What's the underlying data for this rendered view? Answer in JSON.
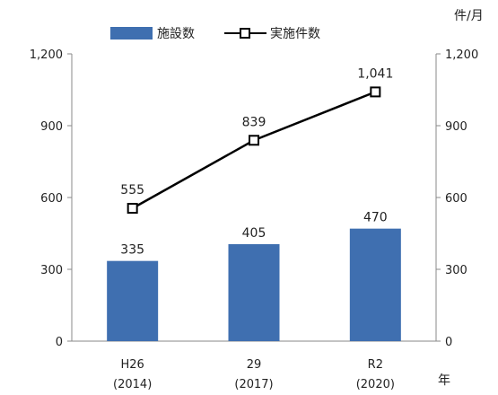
{
  "chart_data": {
    "type": "bar+line",
    "categories": [
      {
        "label": "H26",
        "sub": "(2014)"
      },
      {
        "label": "29",
        "sub": "(2017)"
      },
      {
        "label": "R2",
        "sub": "(2020)"
      }
    ],
    "series": [
      {
        "name": "施設数",
        "type": "bar",
        "axis": "left",
        "values": [
          335,
          405,
          470
        ],
        "labels": [
          "335",
          "405",
          "470"
        ],
        "color": "#3f6fb0"
      },
      {
        "name": "実施件数",
        "type": "line",
        "axis": "right",
        "values": [
          555,
          839,
          1041
        ],
        "labels": [
          "555",
          "839",
          "1,041"
        ],
        "color": "#000000"
      }
    ],
    "left_axis": {
      "ylim": [
        0,
        1200
      ],
      "ticks": [
        "0",
        "300",
        "600",
        "900",
        "1,200"
      ]
    },
    "right_axis": {
      "ylim": [
        0,
        1200
      ],
      "ticks": [
        "0",
        "300",
        "600",
        "900",
        "1,200"
      ],
      "unit": "件/月"
    },
    "xlabel": "年",
    "legend_position": "top",
    "grid": false
  }
}
